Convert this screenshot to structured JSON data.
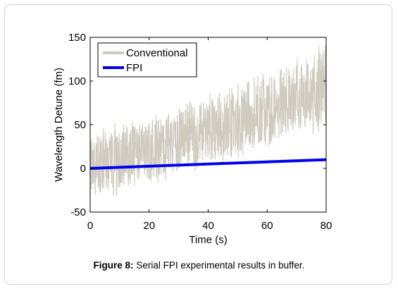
{
  "chart_data": {
    "type": "line",
    "xlabel": "Time (s)",
    "ylabel": "Wavelength Detune (fm)",
    "xlim": [
      0,
      80
    ],
    "ylim": [
      -50,
      150
    ],
    "xticks": [
      0,
      20,
      40,
      60,
      80
    ],
    "yticks": [
      -50,
      0,
      50,
      100,
      150
    ],
    "grid": false,
    "legend_position": "top-left",
    "series": [
      {
        "name": "Conventional",
        "color": "#d0cbbf",
        "style": "noisy band",
        "x": [
          0,
          10,
          20,
          30,
          40,
          50,
          60,
          70,
          80
        ],
        "center": [
          5,
          14,
          25,
          36,
          46,
          56,
          66,
          77,
          88
        ],
        "lower": [
          -30,
          -22,
          -12,
          -2,
          8,
          18,
          30,
          42,
          50
        ],
        "upper": [
          40,
          48,
          58,
          68,
          80,
          92,
          105,
          120,
          140
        ]
      },
      {
        "name": "FPI",
        "color": "#0000ee",
        "style": "line",
        "x": [
          0,
          20,
          40,
          60,
          80
        ],
        "y": [
          0,
          2.5,
          5,
          7.5,
          10
        ]
      }
    ]
  },
  "caption": {
    "label": "Figure 8:",
    "text": " Serial FPI experimental results in buffer."
  }
}
